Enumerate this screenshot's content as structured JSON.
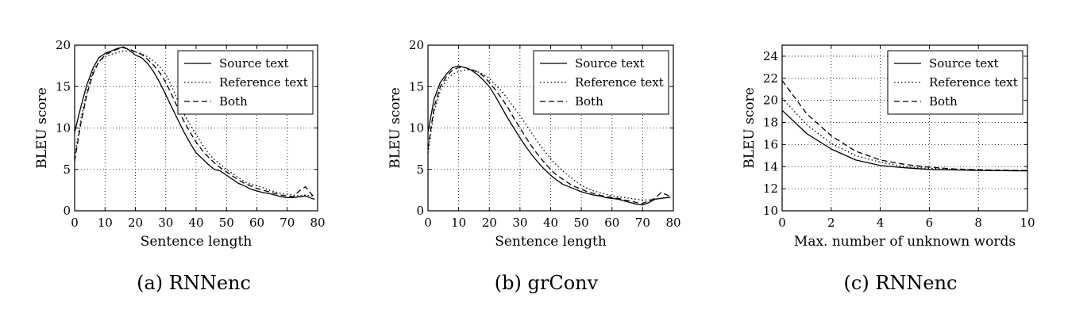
{
  "chart_data": [
    {
      "type": "line",
      "caption": "(a) RNNenc",
      "xlabel": "Sentence length",
      "ylabel": "BLEU score",
      "xlim": [
        0,
        80
      ],
      "ylim": [
        0,
        20
      ],
      "xticks": [
        "0",
        "10",
        "20",
        "30",
        "40",
        "50",
        "60",
        "70",
        "80"
      ],
      "yticks": [
        "0",
        "5",
        "10",
        "15",
        "20"
      ],
      "grid": true,
      "legend": "top-right",
      "series": [
        {
          "name": "Source text",
          "style": "solid",
          "x": [
            0,
            2,
            4,
            6,
            8,
            10,
            12,
            14,
            16,
            18,
            20,
            22,
            24,
            26,
            28,
            30,
            32,
            34,
            36,
            38,
            40,
            42,
            44,
            46,
            48,
            50,
            52,
            54,
            56,
            58,
            60,
            62,
            64,
            66,
            68,
            70,
            72,
            74,
            76,
            78,
            79
          ],
          "y": [
            9.5,
            12.5,
            15.2,
            17.2,
            18.5,
            19.0,
            19.3,
            19.6,
            19.8,
            19.4,
            18.8,
            18.5,
            17.8,
            16.8,
            15.5,
            14.0,
            12.5,
            11.0,
            9.5,
            8.2,
            7.0,
            6.3,
            5.6,
            5.0,
            4.8,
            4.3,
            3.8,
            3.3,
            3.0,
            2.6,
            2.4,
            2.2,
            2.1,
            1.9,
            1.7,
            1.6,
            1.6,
            1.7,
            1.8,
            1.5,
            1.4
          ]
        },
        {
          "name": "Reference text",
          "style": "dotted",
          "x": [
            0,
            2,
            4,
            6,
            8,
            10,
            12,
            14,
            16,
            18,
            20,
            22,
            24,
            26,
            28,
            30,
            32,
            34,
            36,
            38,
            40,
            42,
            44,
            46,
            48,
            50,
            52,
            54,
            56,
            58,
            60,
            62,
            64,
            66,
            68,
            70,
            72,
            74,
            76,
            78,
            79
          ],
          "y": [
            6.5,
            11.0,
            14.5,
            16.8,
            18.0,
            18.6,
            18.9,
            19.1,
            19.3,
            19.3,
            19.2,
            19.0,
            18.6,
            18.1,
            17.4,
            16.5,
            15.0,
            13.3,
            11.7,
            10.4,
            9.2,
            8.0,
            7.0,
            6.2,
            5.6,
            5.0,
            4.5,
            4.0,
            3.5,
            3.2,
            3.0,
            2.8,
            2.5,
            2.3,
            2.1,
            2.0,
            1.9,
            1.8,
            1.9,
            1.8,
            1.7
          ]
        },
        {
          "name": "Both",
          "style": "dashed",
          "x": [
            0,
            2,
            4,
            6,
            8,
            10,
            12,
            14,
            16,
            18,
            20,
            22,
            24,
            26,
            28,
            30,
            32,
            34,
            36,
            38,
            40,
            42,
            44,
            46,
            48,
            50,
            52,
            54,
            56,
            58,
            60,
            62,
            64,
            66,
            68,
            70,
            72,
            74,
            76,
            78,
            79
          ],
          "y": [
            6.0,
            10.5,
            14.0,
            16.5,
            18.0,
            18.8,
            19.2,
            19.5,
            19.7,
            19.5,
            19.2,
            18.9,
            18.3,
            17.6,
            16.7,
            15.5,
            14.0,
            12.4,
            10.8,
            9.5,
            8.3,
            7.3,
            6.5,
            5.8,
            5.2,
            4.7,
            4.2,
            3.7,
            3.3,
            3.0,
            2.7,
            2.5,
            2.3,
            2.1,
            1.9,
            1.8,
            1.7,
            2.4,
            2.9,
            2.0,
            1.6
          ]
        }
      ]
    },
    {
      "type": "line",
      "caption": "(b) grConv",
      "xlabel": "Sentence length",
      "ylabel": "BLEU score",
      "xlim": [
        0,
        80
      ],
      "ylim": [
        0,
        20
      ],
      "xticks": [
        "0",
        "10",
        "20",
        "30",
        "40",
        "50",
        "60",
        "70",
        "80"
      ],
      "yticks": [
        "0",
        "5",
        "10",
        "15",
        "20"
      ],
      "grid": true,
      "legend": "top-right",
      "series": [
        {
          "name": "Source text",
          "style": "solid",
          "x": [
            0,
            2,
            4,
            6,
            8,
            10,
            12,
            14,
            16,
            18,
            20,
            22,
            24,
            26,
            28,
            30,
            32,
            34,
            36,
            38,
            40,
            42,
            44,
            46,
            48,
            50,
            52,
            54,
            56,
            58,
            60,
            62,
            64,
            66,
            68,
            70,
            72,
            74,
            76,
            78,
            79
          ],
          "y": [
            9.5,
            13.5,
            15.5,
            16.5,
            17.3,
            17.5,
            17.3,
            17.0,
            16.5,
            15.8,
            15.0,
            13.8,
            12.5,
            11.2,
            10.0,
            8.8,
            7.7,
            6.7,
            5.8,
            5.0,
            4.3,
            3.7,
            3.2,
            2.9,
            2.6,
            2.3,
            2.1,
            1.9,
            1.8,
            1.6,
            1.5,
            1.4,
            1.2,
            1.0,
            0.8,
            0.7,
            1.0,
            1.4,
            1.5,
            1.6,
            1.6
          ]
        },
        {
          "name": "Reference text",
          "style": "dotted",
          "x": [
            0,
            2,
            4,
            6,
            8,
            10,
            12,
            14,
            16,
            18,
            20,
            22,
            24,
            26,
            28,
            30,
            32,
            34,
            36,
            38,
            40,
            42,
            44,
            46,
            48,
            50,
            52,
            54,
            56,
            58,
            60,
            62,
            64,
            66,
            68,
            70,
            72,
            74,
            76,
            78,
            79
          ],
          "y": [
            7.0,
            12.0,
            14.5,
            15.8,
            16.5,
            16.8,
            17.0,
            17.0,
            16.8,
            16.5,
            16.0,
            15.2,
            14.5,
            13.5,
            12.5,
            11.5,
            10.4,
            9.3,
            8.2,
            7.2,
            6.3,
            5.5,
            4.8,
            4.2,
            3.6,
            3.1,
            2.7,
            2.4,
            2.2,
            2.0,
            1.8,
            1.7,
            1.6,
            1.5,
            1.4,
            1.3,
            1.3,
            1.4,
            1.5,
            1.6,
            1.7
          ]
        },
        {
          "name": "Both",
          "style": "dashed",
          "x": [
            0,
            2,
            4,
            6,
            8,
            10,
            12,
            14,
            16,
            18,
            20,
            22,
            24,
            26,
            28,
            30,
            32,
            34,
            36,
            38,
            40,
            42,
            44,
            46,
            48,
            50,
            52,
            54,
            56,
            58,
            60,
            62,
            64,
            66,
            68,
            70,
            72,
            74,
            76,
            78,
            79
          ],
          "y": [
            7.5,
            12.5,
            15.0,
            16.2,
            17.0,
            17.3,
            17.3,
            17.1,
            16.8,
            16.3,
            15.5,
            14.6,
            13.6,
            12.5,
            11.2,
            10.0,
            8.8,
            7.7,
            6.7,
            5.8,
            5.0,
            4.3,
            3.8,
            3.3,
            2.9,
            2.6,
            2.3,
            2.1,
            1.9,
            1.7,
            1.6,
            1.5,
            1.3,
            1.2,
            1.0,
            0.9,
            1.2,
            1.5,
            2.2,
            1.9,
            1.7
          ]
        }
      ]
    },
    {
      "type": "line",
      "caption": "(c) RNNenc",
      "xlabel": "Max. number of unknown words",
      "ylabel": "BLEU score",
      "xlim": [
        0,
        10
      ],
      "ylim": [
        10,
        25
      ],
      "xticks": [
        "0",
        "2",
        "4",
        "6",
        "8",
        "10"
      ],
      "yticks": [
        "10",
        "12",
        "14",
        "16",
        "18",
        "20",
        "22",
        "24"
      ],
      "grid": true,
      "legend": "top-right",
      "series": [
        {
          "name": "Source text",
          "style": "solid",
          "x": [
            0,
            1,
            2,
            3,
            4,
            5,
            6,
            7,
            8,
            9,
            10
          ],
          "y": [
            19.1,
            17.0,
            15.6,
            14.6,
            14.1,
            13.9,
            13.75,
            13.7,
            13.65,
            13.63,
            13.62
          ]
        },
        {
          "name": "Reference text",
          "style": "dotted",
          "x": [
            0,
            1,
            2,
            3,
            4,
            5,
            6,
            7,
            8,
            9,
            10
          ],
          "y": [
            20.2,
            17.8,
            16.1,
            15.0,
            14.4,
            14.0,
            13.85,
            13.75,
            13.7,
            13.66,
            13.64
          ]
        },
        {
          "name": "Both",
          "style": "dashed",
          "x": [
            0,
            1,
            2,
            3,
            4,
            5,
            6,
            7,
            8,
            9,
            10
          ],
          "y": [
            21.8,
            18.8,
            16.8,
            15.4,
            14.6,
            14.2,
            13.95,
            13.8,
            13.72,
            13.68,
            13.65
          ]
        }
      ]
    }
  ]
}
